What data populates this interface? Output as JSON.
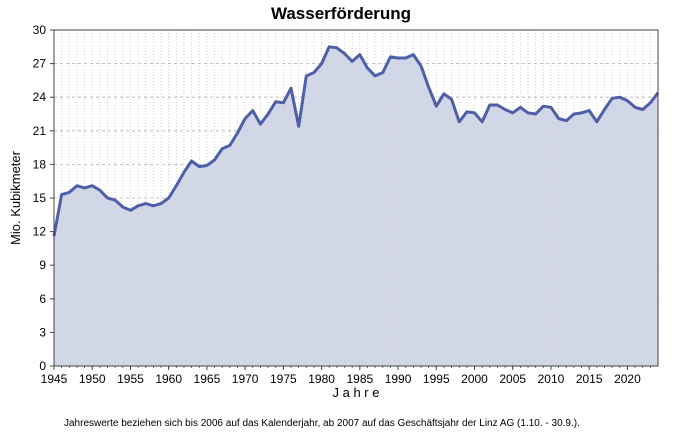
{
  "chart_data": {
    "type": "area",
    "title": "Wasserförderung",
    "xlabel": "J a h r e",
    "ylabel": "Mio. Kubikmeter",
    "xlim": [
      1945,
      2024
    ],
    "ylim": [
      0,
      30
    ],
    "x_ticks": [
      "1945",
      "1950",
      "1955",
      "1960",
      "1965",
      "1970",
      "1975",
      "1980",
      "1985",
      "1990",
      "1995",
      "2000",
      "2005",
      "2010",
      "2015",
      "2020"
    ],
    "y_ticks": [
      "0",
      "3",
      "6",
      "9",
      "12",
      "15",
      "18",
      "21",
      "24",
      "27",
      "30"
    ],
    "grid": true,
    "line_color": "#4e5fa8",
    "fill_color": "#cdd3e6",
    "series": [
      {
        "x": [
          1945,
          1946,
          1947,
          1948,
          1949,
          1950,
          1951,
          1952,
          1953,
          1954,
          1955,
          1956,
          1957,
          1958,
          1959,
          1960,
          1961,
          1962,
          1963,
          1964,
          1965,
          1966,
          1967,
          1968,
          1969,
          1970,
          1971,
          1972,
          1973,
          1974,
          1975,
          1976,
          1977,
          1978,
          1979,
          1980,
          1981,
          1982,
          1983,
          1984,
          1985,
          1986,
          1987,
          1988,
          1989,
          1990,
          1991,
          1992,
          1993,
          1994,
          1995,
          1996,
          1997,
          1998,
          1999,
          2000,
          2001,
          2002,
          2003,
          2004,
          2005,
          2006,
          2007,
          2008,
          2009,
          2010,
          2011,
          2012,
          2013,
          2014,
          2015,
          2016,
          2017,
          2018,
          2019,
          2020,
          2021,
          2022,
          2023,
          2024
        ],
        "values": [
          11.6,
          15.3,
          15.5,
          16.1,
          15.9,
          16.1,
          15.7,
          15.0,
          14.8,
          14.2,
          13.9,
          14.3,
          14.5,
          14.3,
          14.5,
          15.0,
          16.1,
          17.3,
          18.3,
          17.8,
          17.9,
          18.4,
          19.4,
          19.7,
          20.8,
          22.1,
          22.8,
          21.6,
          22.5,
          23.6,
          23.5,
          24.8,
          21.4,
          25.9,
          26.2,
          27.0,
          28.5,
          28.4,
          27.9,
          27.2,
          27.8,
          26.6,
          25.9,
          26.2,
          27.6,
          27.5,
          27.5,
          27.8,
          26.8,
          24.9,
          23.2,
          24.3,
          23.8,
          21.8,
          22.7,
          22.6,
          21.8,
          23.3,
          23.3,
          22.9,
          22.6,
          23.1,
          22.6,
          22.5,
          23.2,
          23.1,
          22.1,
          21.9,
          22.5,
          22.6,
          22.8,
          21.8,
          22.9,
          23.9,
          24.0,
          23.7,
          23.1,
          22.9,
          23.5,
          24.4
        ]
      }
    ]
  },
  "footnote": "Jahreswerte beziehen sich bis 2006 auf das Kalenderjahr, ab 2007 auf das Geschäftsjahr der Linz AG (1.10. - 30.9.)."
}
